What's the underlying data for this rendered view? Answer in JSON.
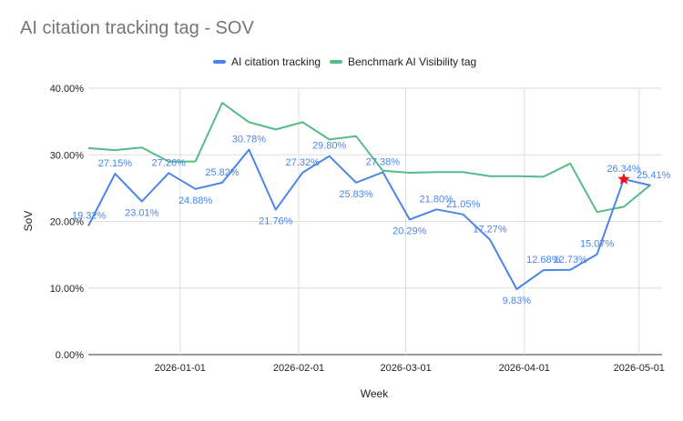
{
  "chart_data": {
    "type": "line",
    "title": "AI citation tracking tag - SOV",
    "xlabel": "Week",
    "ylabel": "SoV",
    "y_ticks": [
      "0.00%",
      "10.00%",
      "20.00%",
      "30.00%",
      "40.00%"
    ],
    "ylim": [
      0,
      40
    ],
    "x_ticks": [
      {
        "label": "2026-01-01",
        "date": "2026-01-01"
      },
      {
        "label": "2026-02-01",
        "date": "2026-02-01"
      },
      {
        "label": "2026-03-01",
        "date": "2026-03-01"
      },
      {
        "label": "2026-04-01",
        "date": "2026-04-01"
      },
      {
        "label": "2026-05-01",
        "date": "2026-05-01"
      }
    ],
    "xlim": [
      "2025-12-08",
      "2026-05-07"
    ],
    "gridlines": true,
    "legend_position": "top",
    "series": [
      {
        "name": "AI citation tracking",
        "color": "#4a86e8",
        "data_labels": true,
        "points": [
          {
            "x": "2025-12-08",
            "y": 19.32,
            "label": "19.32%"
          },
          {
            "x": "2025-12-15",
            "y": 27.15,
            "label": "27.15%"
          },
          {
            "x": "2025-12-22",
            "y": 23.01,
            "label": "23.01%"
          },
          {
            "x": "2025-12-29",
            "y": 27.26,
            "label": "27.26%"
          },
          {
            "x": "2026-01-05",
            "y": 24.88,
            "label": "24.88%"
          },
          {
            "x": "2026-01-12",
            "y": 25.82,
            "label": "25.82%"
          },
          {
            "x": "2026-01-19",
            "y": 30.78,
            "label": "30.78%"
          },
          {
            "x": "2026-01-26",
            "y": 21.76,
            "label": "21.76%"
          },
          {
            "x": "2026-02-02",
            "y": 27.32,
            "label": "27.32%"
          },
          {
            "x": "2026-02-09",
            "y": 29.8,
            "label": "29.80%"
          },
          {
            "x": "2026-02-16",
            "y": 25.83,
            "label": "25.83%"
          },
          {
            "x": "2026-02-23",
            "y": 27.38,
            "label": "27.38%"
          },
          {
            "x": "2026-03-02",
            "y": 20.29,
            "label": "20.29%"
          },
          {
            "x": "2026-03-09",
            "y": 21.8,
            "label": "21.80%"
          },
          {
            "x": "2026-03-16",
            "y": 21.05,
            "label": "21.05%"
          },
          {
            "x": "2026-03-23",
            "y": 17.27,
            "label": "17.27%"
          },
          {
            "x": "2026-03-30",
            "y": 9.83,
            "label": "9.83%"
          },
          {
            "x": "2026-04-06",
            "y": 12.68,
            "label": "12.68%"
          },
          {
            "x": "2026-04-13",
            "y": 12.73,
            "label": "12.73%"
          },
          {
            "x": "2026-04-20",
            "y": 15.07,
            "label": "15.07%"
          },
          {
            "x": "2026-04-27",
            "y": 26.34,
            "label": "26.34%",
            "marker": "star",
            "marker_color": "#ee1111"
          },
          {
            "x": "2026-05-04",
            "y": 25.41,
            "label": "25.41%"
          }
        ]
      },
      {
        "name": "Benchmark AI Visibility tag",
        "color": "#57bb8a",
        "data_labels": false,
        "points": [
          {
            "x": "2025-12-08",
            "y": 31.0
          },
          {
            "x": "2025-12-15",
            "y": 30.7
          },
          {
            "x": "2025-12-22",
            "y": 31.1
          },
          {
            "x": "2025-12-29",
            "y": 29.0
          },
          {
            "x": "2026-01-05",
            "y": 29.0
          },
          {
            "x": "2026-01-12",
            "y": 37.8
          },
          {
            "x": "2026-01-19",
            "y": 34.9
          },
          {
            "x": "2026-01-26",
            "y": 33.8
          },
          {
            "x": "2026-02-02",
            "y": 34.9
          },
          {
            "x": "2026-02-09",
            "y": 32.3
          },
          {
            "x": "2026-02-16",
            "y": 32.8
          },
          {
            "x": "2026-02-23",
            "y": 27.6
          },
          {
            "x": "2026-03-02",
            "y": 27.3
          },
          {
            "x": "2026-03-09",
            "y": 27.4
          },
          {
            "x": "2026-03-16",
            "y": 27.4
          },
          {
            "x": "2026-03-23",
            "y": 26.8
          },
          {
            "x": "2026-03-30",
            "y": 26.8
          },
          {
            "x": "2026-04-06",
            "y": 26.7
          },
          {
            "x": "2026-04-13",
            "y": 28.7
          },
          {
            "x": "2026-04-20",
            "y": 21.4
          },
          {
            "x": "2026-04-27",
            "y": 22.2
          },
          {
            "x": "2026-05-04",
            "y": 25.5
          }
        ]
      }
    ]
  }
}
